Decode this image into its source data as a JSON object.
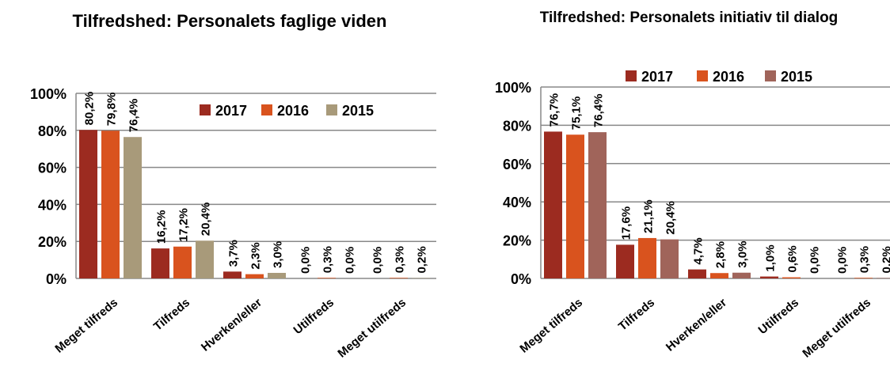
{
  "charts": [
    {
      "chart_data": {
        "type": "bar",
        "title": "Tilfredshed: Personalets faglige viden",
        "categories": [
          "Meget tilfreds",
          "Tilfreds",
          "Hverken/eller",
          "Utilfreds",
          "Meget utilfreds"
        ],
        "series": [
          {
            "name": "2017",
            "color": "#9c2b20",
            "values": [
              80.2,
              16.2,
              3.7,
              0.0,
              0.0
            ],
            "value_labels": [
              "80,2%",
              "16,2%",
              "3,7%",
              "0,0%",
              "0,0%"
            ]
          },
          {
            "name": "2016",
            "color": "#d9531e",
            "values": [
              79.8,
              17.2,
              2.3,
              0.3,
              0.3
            ],
            "value_labels": [
              "79,8%",
              "17,2%",
              "2,3%",
              "0,3%",
              "0,3%"
            ]
          },
          {
            "name": "2015",
            "color": "#a89a7a",
            "values": [
              76.4,
              20.4,
              3.0,
              0.0,
              0.2
            ],
            "value_labels": [
              "76,4%",
              "20,4%",
              "3,0%",
              "0,0%",
              "0,2%"
            ]
          }
        ],
        "ylim": [
          0,
          100
        ],
        "yticks": [
          {
            "value": 0,
            "label": "0%"
          },
          {
            "value": 20,
            "label": "20%"
          },
          {
            "value": 40,
            "label": "40%"
          },
          {
            "value": 60,
            "label": "60%"
          },
          {
            "value": 80,
            "label": "80%"
          },
          {
            "value": 100,
            "label": "100%"
          }
        ],
        "grid": true,
        "legend": "inside"
      }
    },
    {
      "chart_data": {
        "type": "bar",
        "title": "Tilfredshed: Personalets initiativ til dialog",
        "categories": [
          "Meget tilfreds",
          "Tilfreds",
          "Hverken/eller",
          "Utilfreds",
          "Meget utilfreds"
        ],
        "series": [
          {
            "name": "2017",
            "color": "#9c2b20",
            "values": [
              76.7,
              17.6,
              4.7,
              1.0,
              0.0
            ],
            "value_labels": [
              "76,7%",
              "17,6%",
              "4,7%",
              "1,0%",
              "0,0%"
            ]
          },
          {
            "name": "2016",
            "color": "#d9531e",
            "values": [
              75.1,
              21.1,
              2.8,
              0.6,
              0.3
            ],
            "value_labels": [
              "75,1%",
              "21,1%",
              "2,8%",
              "0,6%",
              "0,3%"
            ]
          },
          {
            "name": "2015",
            "color": "#a0645a",
            "values": [
              76.4,
              20.4,
              3.0,
              0.0,
              0.2
            ],
            "value_labels": [
              "76,4%",
              "20,4%",
              "3,0%",
              "0,0%",
              "0,2%"
            ]
          }
        ],
        "ylim": [
          0,
          100
        ],
        "yticks": [
          {
            "value": 0,
            "label": "0%"
          },
          {
            "value": 20,
            "label": "20%"
          },
          {
            "value": 40,
            "label": "40%"
          },
          {
            "value": 60,
            "label": "60%"
          },
          {
            "value": 80,
            "label": "80%"
          },
          {
            "value": 100,
            "label": "100%"
          }
        ],
        "grid": true,
        "legend": "top"
      }
    }
  ]
}
